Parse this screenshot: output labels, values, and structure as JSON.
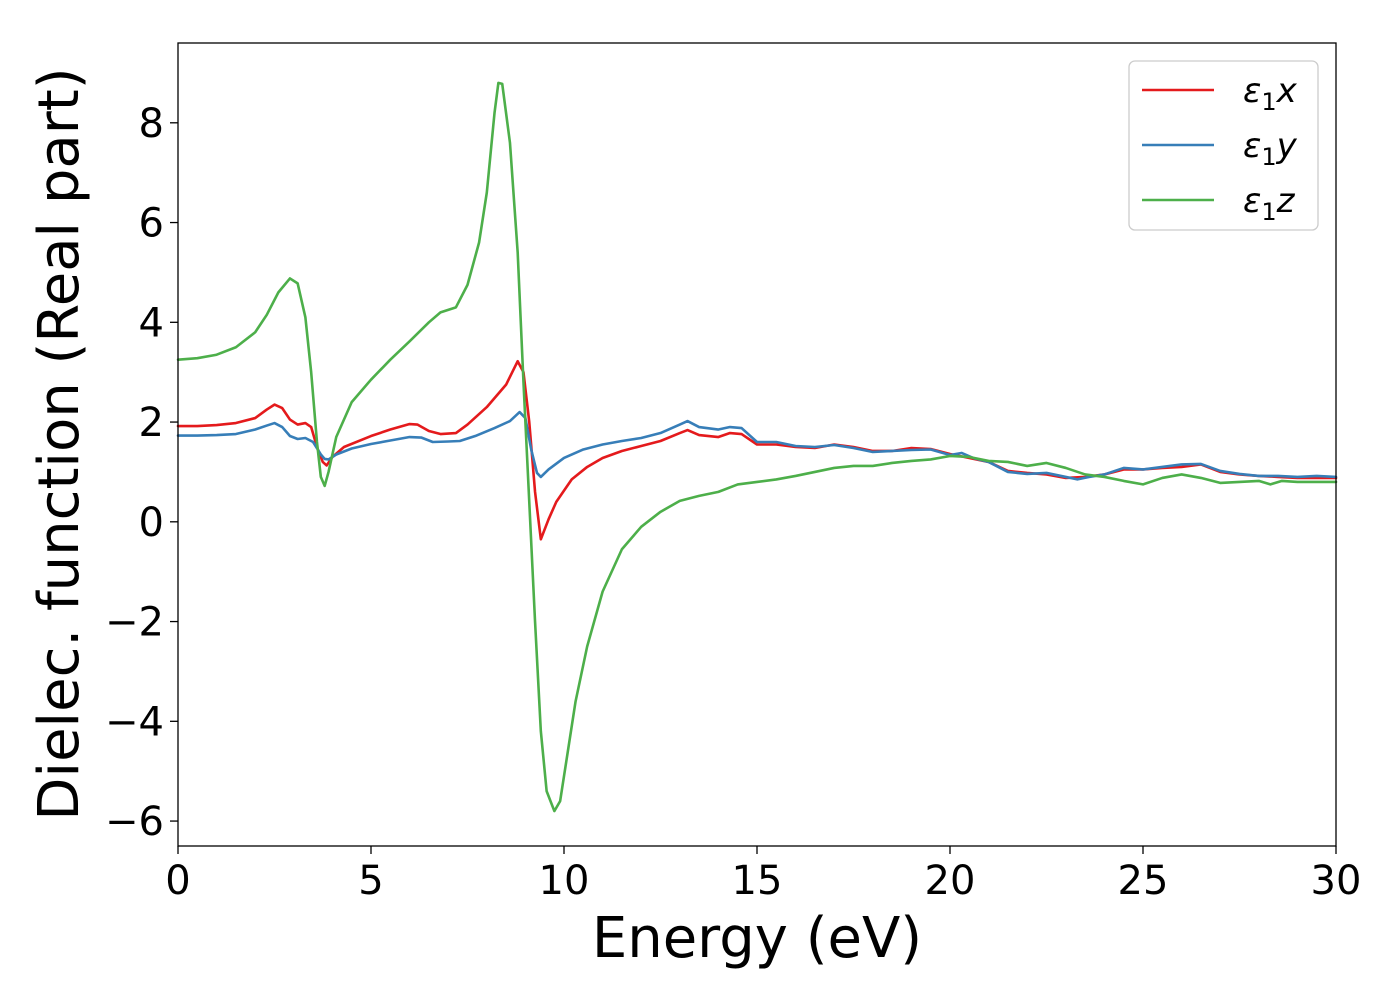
{
  "chart_data": {
    "type": "line",
    "title": "",
    "xlabel": "Energy (eV)",
    "ylabel": "Dielec. function (Real part)",
    "xlim": [
      0,
      30
    ],
    "ylim": [
      -6.5,
      9.6
    ],
    "x_ticks": [
      0,
      5,
      10,
      15,
      20,
      25,
      30
    ],
    "y_ticks": [
      -6,
      -4,
      -2,
      0,
      2,
      4,
      6,
      8
    ],
    "x_tick_labels": [
      "0",
      "5",
      "10",
      "15",
      "20",
      "25",
      "30"
    ],
    "y_tick_labels": [
      "−6",
      "−4",
      "−2",
      "0",
      "2",
      "4",
      "6",
      "8"
    ],
    "grid": false,
    "legend_position": "top-right",
    "series": [
      {
        "name": "ε₁x",
        "legend_base": "ε",
        "legend_sub": "1",
        "legend_tail": "x",
        "color": "#e41a1c",
        "points": [
          [
            0,
            1.92
          ],
          [
            0.5,
            1.92
          ],
          [
            1,
            1.94
          ],
          [
            1.5,
            1.98
          ],
          [
            2,
            2.08
          ],
          [
            2.3,
            2.25
          ],
          [
            2.5,
            2.35
          ],
          [
            2.7,
            2.28
          ],
          [
            2.9,
            2.05
          ],
          [
            3.1,
            1.95
          ],
          [
            3.3,
            1.98
          ],
          [
            3.45,
            1.9
          ],
          [
            3.6,
            1.5
          ],
          [
            3.75,
            1.2
          ],
          [
            3.85,
            1.13
          ],
          [
            4,
            1.3
          ],
          [
            4.3,
            1.5
          ],
          [
            5,
            1.72
          ],
          [
            5.5,
            1.85
          ],
          [
            6,
            1.96
          ],
          [
            6.2,
            1.95
          ],
          [
            6.5,
            1.82
          ],
          [
            6.8,
            1.76
          ],
          [
            7.2,
            1.78
          ],
          [
            7.5,
            1.95
          ],
          [
            8,
            2.3
          ],
          [
            8.5,
            2.75
          ],
          [
            8.8,
            3.22
          ],
          [
            8.95,
            3.0
          ],
          [
            9.1,
            2.0
          ],
          [
            9.25,
            0.6
          ],
          [
            9.4,
            -0.35
          ],
          [
            9.6,
            0.05
          ],
          [
            9.8,
            0.4
          ],
          [
            10.2,
            0.85
          ],
          [
            10.6,
            1.1
          ],
          [
            11,
            1.28
          ],
          [
            11.5,
            1.42
          ],
          [
            12,
            1.52
          ],
          [
            12.5,
            1.62
          ],
          [
            13,
            1.78
          ],
          [
            13.2,
            1.84
          ],
          [
            13.5,
            1.74
          ],
          [
            14,
            1.7
          ],
          [
            14.3,
            1.78
          ],
          [
            14.6,
            1.76
          ],
          [
            15,
            1.55
          ],
          [
            15.5,
            1.55
          ],
          [
            16,
            1.5
          ],
          [
            16.5,
            1.48
          ],
          [
            17,
            1.55
          ],
          [
            17.5,
            1.5
          ],
          [
            18,
            1.42
          ],
          [
            18.5,
            1.42
          ],
          [
            19,
            1.48
          ],
          [
            19.5,
            1.46
          ],
          [
            20,
            1.36
          ],
          [
            20.5,
            1.28
          ],
          [
            21,
            1.2
          ],
          [
            21.5,
            1.02
          ],
          [
            22,
            0.98
          ],
          [
            22.5,
            0.95
          ],
          [
            23,
            0.88
          ],
          [
            23.5,
            0.9
          ],
          [
            24,
            0.95
          ],
          [
            24.5,
            1.05
          ],
          [
            25,
            1.05
          ],
          [
            25.5,
            1.08
          ],
          [
            26,
            1.1
          ],
          [
            26.5,
            1.15
          ],
          [
            27,
            1.0
          ],
          [
            27.5,
            0.95
          ],
          [
            28,
            0.92
          ],
          [
            28.5,
            0.9
          ],
          [
            29,
            0.88
          ],
          [
            29.5,
            0.88
          ],
          [
            30,
            0.88
          ]
        ]
      },
      {
        "name": "ε₁y",
        "legend_base": "ε",
        "legend_sub": "1",
        "legend_tail": "y",
        "color": "#377eb8",
        "points": [
          [
            0,
            1.73
          ],
          [
            0.5,
            1.73
          ],
          [
            1,
            1.74
          ],
          [
            1.5,
            1.76
          ],
          [
            2,
            1.85
          ],
          [
            2.3,
            1.93
          ],
          [
            2.5,
            1.98
          ],
          [
            2.7,
            1.9
          ],
          [
            2.9,
            1.72
          ],
          [
            3.1,
            1.66
          ],
          [
            3.3,
            1.68
          ],
          [
            3.5,
            1.6
          ],
          [
            3.7,
            1.35
          ],
          [
            3.8,
            1.26
          ],
          [
            3.9,
            1.25
          ],
          [
            4.1,
            1.35
          ],
          [
            4.5,
            1.47
          ],
          [
            5,
            1.56
          ],
          [
            5.5,
            1.63
          ],
          [
            6,
            1.7
          ],
          [
            6.3,
            1.69
          ],
          [
            6.6,
            1.6
          ],
          [
            7,
            1.61
          ],
          [
            7.3,
            1.62
          ],
          [
            7.7,
            1.72
          ],
          [
            8.2,
            1.88
          ],
          [
            8.6,
            2.02
          ],
          [
            8.85,
            2.2
          ],
          [
            9,
            2.08
          ],
          [
            9.15,
            1.45
          ],
          [
            9.3,
            0.98
          ],
          [
            9.4,
            0.9
          ],
          [
            9.6,
            1.05
          ],
          [
            10,
            1.28
          ],
          [
            10.5,
            1.45
          ],
          [
            11,
            1.55
          ],
          [
            11.5,
            1.62
          ],
          [
            12,
            1.68
          ],
          [
            12.5,
            1.78
          ],
          [
            13,
            1.95
          ],
          [
            13.2,
            2.02
          ],
          [
            13.5,
            1.9
          ],
          [
            14,
            1.85
          ],
          [
            14.3,
            1.9
          ],
          [
            14.6,
            1.88
          ],
          [
            15,
            1.6
          ],
          [
            15.5,
            1.6
          ],
          [
            16,
            1.52
          ],
          [
            16.5,
            1.5
          ],
          [
            17,
            1.54
          ],
          [
            17.5,
            1.48
          ],
          [
            18,
            1.4
          ],
          [
            18.5,
            1.42
          ],
          [
            19,
            1.44
          ],
          [
            19.5,
            1.45
          ],
          [
            20,
            1.34
          ],
          [
            20.3,
            1.38
          ],
          [
            20.6,
            1.28
          ],
          [
            21,
            1.2
          ],
          [
            21.5,
            1.0
          ],
          [
            22,
            0.96
          ],
          [
            22.5,
            0.98
          ],
          [
            23,
            0.9
          ],
          [
            23.3,
            0.85
          ],
          [
            23.6,
            0.9
          ],
          [
            24,
            0.95
          ],
          [
            24.5,
            1.08
          ],
          [
            25,
            1.05
          ],
          [
            25.5,
            1.1
          ],
          [
            26,
            1.15
          ],
          [
            26.5,
            1.16
          ],
          [
            27,
            1.02
          ],
          [
            27.5,
            0.96
          ],
          [
            28,
            0.92
          ],
          [
            28.5,
            0.92
          ],
          [
            29,
            0.9
          ],
          [
            29.5,
            0.92
          ],
          [
            30,
            0.9
          ]
        ]
      },
      {
        "name": "ε₁z",
        "legend_base": "ε",
        "legend_sub": "1",
        "legend_tail": "z",
        "color": "#4daf4a",
        "points": [
          [
            0,
            3.25
          ],
          [
            0.5,
            3.28
          ],
          [
            1,
            3.35
          ],
          [
            1.5,
            3.5
          ],
          [
            2,
            3.8
          ],
          [
            2.3,
            4.15
          ],
          [
            2.6,
            4.6
          ],
          [
            2.9,
            4.88
          ],
          [
            3.1,
            4.78
          ],
          [
            3.3,
            4.1
          ],
          [
            3.45,
            3.0
          ],
          [
            3.6,
            1.6
          ],
          [
            3.7,
            0.9
          ],
          [
            3.8,
            0.72
          ],
          [
            3.9,
            1.0
          ],
          [
            4.1,
            1.7
          ],
          [
            4.5,
            2.4
          ],
          [
            5,
            2.85
          ],
          [
            5.5,
            3.25
          ],
          [
            6,
            3.62
          ],
          [
            6.5,
            4.0
          ],
          [
            6.8,
            4.2
          ],
          [
            7.2,
            4.3
          ],
          [
            7.5,
            4.75
          ],
          [
            7.8,
            5.6
          ],
          [
            8,
            6.6
          ],
          [
            8.2,
            8.2
          ],
          [
            8.3,
            8.8
          ],
          [
            8.4,
            8.78
          ],
          [
            8.6,
            7.6
          ],
          [
            8.8,
            5.4
          ],
          [
            8.95,
            2.8
          ],
          [
            9.1,
            0.4
          ],
          [
            9.25,
            -2.0
          ],
          [
            9.4,
            -4.2
          ],
          [
            9.55,
            -5.4
          ],
          [
            9.75,
            -5.8
          ],
          [
            9.9,
            -5.6
          ],
          [
            10.1,
            -4.6
          ],
          [
            10.3,
            -3.6
          ],
          [
            10.6,
            -2.5
          ],
          [
            11,
            -1.4
          ],
          [
            11.5,
            -0.55
          ],
          [
            12,
            -0.1
          ],
          [
            12.5,
            0.2
          ],
          [
            13,
            0.42
          ],
          [
            13.5,
            0.52
          ],
          [
            14,
            0.6
          ],
          [
            14.5,
            0.75
          ],
          [
            15,
            0.8
          ],
          [
            15.5,
            0.85
          ],
          [
            16,
            0.92
          ],
          [
            16.5,
            1.0
          ],
          [
            17,
            1.08
          ],
          [
            17.5,
            1.12
          ],
          [
            18,
            1.12
          ],
          [
            18.5,
            1.18
          ],
          [
            19,
            1.22
          ],
          [
            19.5,
            1.25
          ],
          [
            20,
            1.32
          ],
          [
            20.5,
            1.3
          ],
          [
            21,
            1.22
          ],
          [
            21.5,
            1.2
          ],
          [
            22,
            1.12
          ],
          [
            22.5,
            1.18
          ],
          [
            23,
            1.08
          ],
          [
            23.5,
            0.95
          ],
          [
            24,
            0.9
          ],
          [
            24.5,
            0.82
          ],
          [
            25,
            0.75
          ],
          [
            25.5,
            0.88
          ],
          [
            26,
            0.95
          ],
          [
            26.5,
            0.88
          ],
          [
            27,
            0.78
          ],
          [
            27.5,
            0.8
          ],
          [
            28,
            0.82
          ],
          [
            28.3,
            0.75
          ],
          [
            28.6,
            0.82
          ],
          [
            29,
            0.8
          ],
          [
            29.5,
            0.8
          ],
          [
            30,
            0.8
          ]
        ]
      }
    ]
  }
}
